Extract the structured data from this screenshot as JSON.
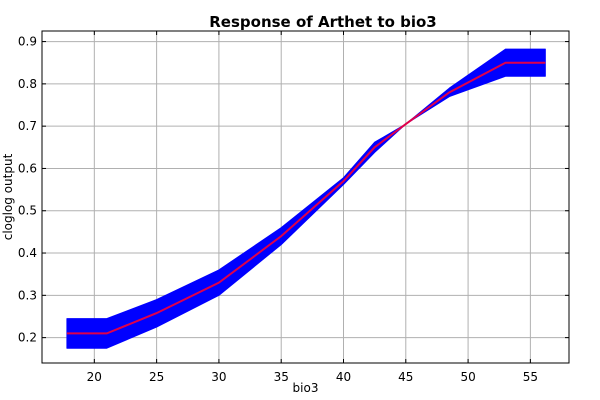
{
  "chart_data": {
    "type": "line",
    "title": "Response of Arthet to bio3",
    "xlabel": "bio3",
    "ylabel": "cloglog output",
    "xlim": [
      15.8,
      58.1
    ],
    "ylim": [
      0.14,
      0.925
    ],
    "xticks": [
      20,
      25,
      30,
      35,
      40,
      45,
      50,
      55
    ],
    "yticks": [
      0.2,
      0.3,
      0.4,
      0.5,
      0.6,
      0.7,
      0.8,
      0.9
    ],
    "grid": true,
    "legend": "none",
    "series": [
      {
        "role": "mean",
        "color": "#e0004a",
        "x": [
          17.8,
          21.0,
          25.0,
          30.0,
          35.0,
          40.0,
          42.5,
          45.0,
          48.5,
          53.0,
          56.2
        ],
        "y": [
          0.21,
          0.21,
          0.258,
          0.33,
          0.44,
          0.57,
          0.65,
          0.705,
          0.78,
          0.85,
          0.85
        ]
      },
      {
        "role": "uncertainty band",
        "color": "#0000ff",
        "x": [
          17.8,
          21.0,
          25.0,
          30.0,
          35.0,
          40.0,
          42.5,
          45.0,
          48.5,
          53.0,
          56.2
        ],
        "upper": [
          0.245,
          0.245,
          0.29,
          0.36,
          0.46,
          0.578,
          0.662,
          0.705,
          0.79,
          0.882,
          0.882
        ],
        "lower": [
          0.175,
          0.175,
          0.225,
          0.3,
          0.42,
          0.562,
          0.638,
          0.705,
          0.77,
          0.818,
          0.818
        ]
      }
    ]
  }
}
